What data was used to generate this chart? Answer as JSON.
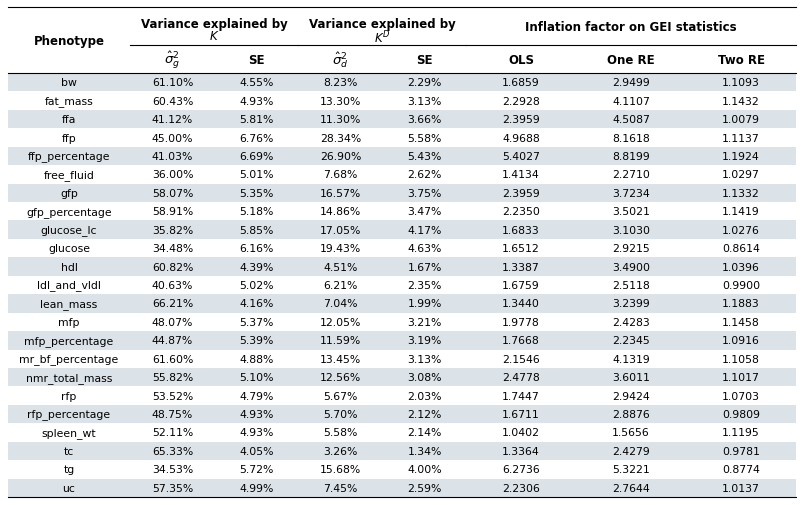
{
  "phenotypes": [
    "bw",
    "fat_mass",
    "ffa",
    "ffp",
    "ffp_percentage",
    "free_fluid",
    "gfp",
    "gfp_percentage",
    "glucose_lc",
    "glucose",
    "hdl",
    "ldl_and_vldl",
    "lean_mass",
    "mfp",
    "mfp_percentage",
    "mr_bf_percentage",
    "nmr_total_mass",
    "rfp",
    "rfp_percentage",
    "spleen_wt",
    "tc",
    "tg",
    "uc"
  ],
  "sigma2_g": [
    "61.10%",
    "60.43%",
    "41.12%",
    "45.00%",
    "41.03%",
    "36.00%",
    "58.07%",
    "58.91%",
    "35.82%",
    "34.48%",
    "60.82%",
    "40.63%",
    "66.21%",
    "48.07%",
    "44.87%",
    "61.60%",
    "55.82%",
    "53.52%",
    "48.75%",
    "52.11%",
    "65.33%",
    "34.53%",
    "57.35%"
  ],
  "se_g": [
    "4.55%",
    "4.93%",
    "5.81%",
    "6.76%",
    "6.69%",
    "5.01%",
    "5.35%",
    "5.18%",
    "5.85%",
    "6.16%",
    "4.39%",
    "5.02%",
    "4.16%",
    "5.37%",
    "5.39%",
    "4.88%",
    "5.10%",
    "4.79%",
    "4.93%",
    "4.93%",
    "4.05%",
    "5.72%",
    "4.99%"
  ],
  "sigma2_d": [
    "8.23%",
    "13.30%",
    "11.30%",
    "28.34%",
    "26.90%",
    "7.68%",
    "16.57%",
    "14.86%",
    "17.05%",
    "19.43%",
    "4.51%",
    "6.21%",
    "7.04%",
    "12.05%",
    "11.59%",
    "13.45%",
    "12.56%",
    "5.67%",
    "5.70%",
    "5.58%",
    "3.26%",
    "15.68%",
    "7.45%"
  ],
  "se_d": [
    "2.29%",
    "3.13%",
    "3.66%",
    "5.58%",
    "5.43%",
    "2.62%",
    "3.75%",
    "3.47%",
    "4.17%",
    "4.63%",
    "1.67%",
    "2.35%",
    "1.99%",
    "3.21%",
    "3.19%",
    "3.13%",
    "3.08%",
    "2.03%",
    "2.12%",
    "2.14%",
    "1.34%",
    "4.00%",
    "2.59%"
  ],
  "ols": [
    "1.6859",
    "2.2928",
    "2.3959",
    "4.9688",
    "5.4027",
    "1.4134",
    "2.3959",
    "2.2350",
    "1.6833",
    "1.6512",
    "1.3387",
    "1.6759",
    "1.3440",
    "1.9778",
    "1.7668",
    "2.1546",
    "2.4778",
    "1.7447",
    "1.6711",
    "1.0402",
    "1.3364",
    "6.2736",
    "2.2306"
  ],
  "one_re": [
    "2.9499",
    "4.1107",
    "4.5087",
    "8.1618",
    "8.8199",
    "2.2710",
    "3.7234",
    "3.5021",
    "3.1030",
    "2.9215",
    "3.4900",
    "2.5118",
    "3.2399",
    "2.4283",
    "2.2345",
    "4.1319",
    "3.6011",
    "2.9424",
    "2.8876",
    "1.5656",
    "2.4279",
    "5.3221",
    "2.7644"
  ],
  "two_re": [
    "1.1093",
    "1.1432",
    "1.0079",
    "1.1137",
    "1.1924",
    "1.0297",
    "1.1332",
    "1.1419",
    "1.0276",
    "0.8614",
    "1.0396",
    "0.9900",
    "1.1883",
    "1.1458",
    "1.0916",
    "1.1058",
    "1.1017",
    "1.0703",
    "0.9809",
    "1.1195",
    "0.9781",
    "0.8774",
    "1.0137"
  ],
  "row_bg_even": "#dce3e8",
  "row_bg_odd": "#ffffff",
  "figsize": [
    8.02,
    5.06
  ],
  "dpi": 100
}
